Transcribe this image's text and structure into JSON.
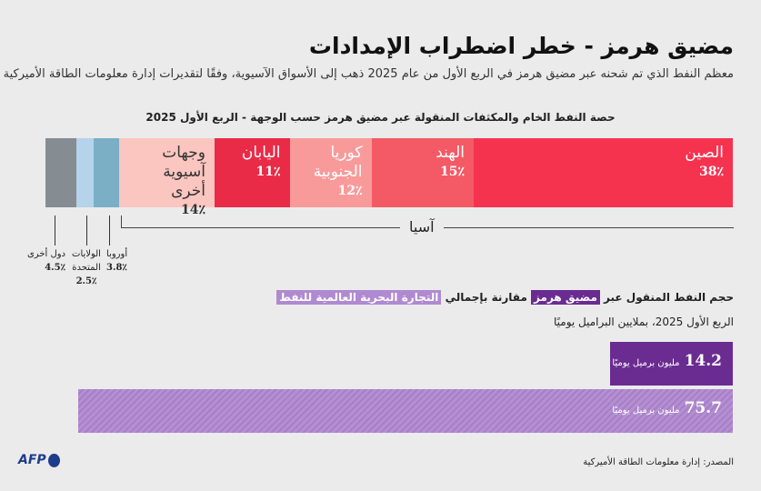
{
  "header": {
    "title": "مضيق هرمز - خطر اضطراب الإمدادات",
    "subtitle": "معظم النفط الذي تم شحنه عبر مضيق هرمز في الربع الأول من عام 2025 ذهب إلى الأسواق الآسيوية، وفقًا لتقديرات إدارة معلومات الطاقة الأميركية"
  },
  "chart_data": [
    {
      "type": "bar",
      "stacked": true,
      "title": "حصة النفط الخام والمكثفات المنقولة عبر مضيق هرمز حسب الوجهة - الربع الأول 2025",
      "unit": "%",
      "group_label": "آسيا",
      "segments": [
        {
          "name": "الصين",
          "lines": [
            "الصين"
          ],
          "value": 38,
          "pct_label": "38٪",
          "color": "#f5334f",
          "text_color": "#ffffff",
          "group": "asia"
        },
        {
          "name": "الهند",
          "lines": [
            "الهند"
          ],
          "value": 15,
          "pct_label": "15٪",
          "color": "#f35a65",
          "text_color": "#ffffff",
          "group": "asia"
        },
        {
          "name": "كوريا الجنوبية",
          "lines": [
            "كوريا",
            "الجنوبية"
          ],
          "value": 12,
          "pct_label": "12٪",
          "color": "#f99a9a",
          "text_color": "#ffffff",
          "group": "asia"
        },
        {
          "name": "اليابان",
          "lines": [
            "اليابان"
          ],
          "value": 11,
          "pct_label": "11٪",
          "color": "#ea2b47",
          "text_color": "#ffffff",
          "group": "asia"
        },
        {
          "name": "وجهات آسيوية أخرى",
          "lines": [
            "وجهات آسيوية",
            "أخرى"
          ],
          "value": 14,
          "pct_label": "14٪",
          "color": "#fbc5c0",
          "text_color": "#333333",
          "group": "asia"
        },
        {
          "name": "أوروبا",
          "lines": [
            "أوروبا"
          ],
          "value": 3.8,
          "pct_label": "3.8٪",
          "color": "#7aafc6",
          "group": "other"
        },
        {
          "name": "الولايات المتحدة",
          "lines": [
            "الولايات",
            "المتحدة"
          ],
          "value": 2.5,
          "pct_label": "2.5٪",
          "color": "#b5d3ea",
          "group": "other"
        },
        {
          "name": "دول أخرى",
          "lines": [
            "دول أخرى"
          ],
          "value": 4.5,
          "pct_label": "4.5٪",
          "color": "#858d93",
          "group": "other"
        }
      ]
    },
    {
      "type": "bar",
      "title_parts": [
        "حجم النفط المنقول عبر ",
        "مضيق هرمز",
        " مقارنة بإجمالي ",
        "التجارة البحرية العالمية للنفط"
      ],
      "subtitle": "الربع الأول 2025، بملايين البراميل يوميًا",
      "unit": "مليون برميل يوميًا",
      "bars": [
        {
          "name": "مضيق هرمز",
          "value": 14.2,
          "label": "14.2",
          "color": "#6a2c91"
        },
        {
          "name": "التجارة البحرية العالمية للنفط",
          "value": 75.7,
          "label": "75.7",
          "color": "#b08ad0"
        }
      ]
    }
  ],
  "footer": {
    "source": "المصدر: إدارة معلومات الطاقة الأميركية",
    "logo": "AFP"
  }
}
